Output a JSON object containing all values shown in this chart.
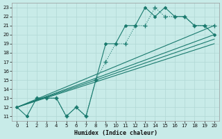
{
  "xlabel": "Humidex (Indice chaleur)",
  "bg_color": "#c8ebe8",
  "grid_color": "#b0d8d4",
  "line_color": "#1a7a6e",
  "xlim": [
    -0.5,
    20.5
  ],
  "ylim": [
    10.5,
    23.5
  ],
  "xticks": [
    0,
    1,
    2,
    3,
    4,
    5,
    6,
    7,
    8,
    9,
    10,
    11,
    12,
    13,
    14,
    15,
    16,
    17,
    18,
    19,
    20
  ],
  "yticks": [
    11,
    12,
    13,
    14,
    15,
    16,
    17,
    18,
    19,
    20,
    21,
    22,
    23
  ],
  "line_zigzag": {
    "x": [
      0,
      1,
      2,
      3,
      4,
      5,
      6,
      7,
      8,
      9,
      10,
      11,
      12,
      13,
      14,
      15,
      16,
      17,
      18,
      19,
      20
    ],
    "y": [
      12,
      11,
      13,
      13,
      13,
      11,
      12,
      11,
      15,
      19,
      19,
      21,
      21,
      23,
      22,
      23,
      22,
      22,
      21,
      21,
      20
    ]
  },
  "line_smooth": {
    "x": [
      2,
      3,
      4,
      5,
      6,
      7,
      8,
      9,
      10,
      11,
      12,
      13,
      14,
      15,
      16,
      17,
      18,
      19,
      20
    ],
    "y": [
      13,
      13,
      13,
      11,
      12,
      11,
      15,
      17,
      19,
      19,
      21,
      21,
      23,
      22,
      22,
      22,
      21,
      21,
      21
    ]
  },
  "straight_lines": [
    {
      "x": [
        0,
        20
      ],
      "y": [
        12,
        21
      ]
    },
    {
      "x": [
        0,
        20
      ],
      "y": [
        12,
        20
      ]
    },
    {
      "x": [
        0,
        20
      ],
      "y": [
        12,
        19.5
      ]
    },
    {
      "x": [
        0,
        20
      ],
      "y": [
        12,
        19
      ]
    }
  ]
}
